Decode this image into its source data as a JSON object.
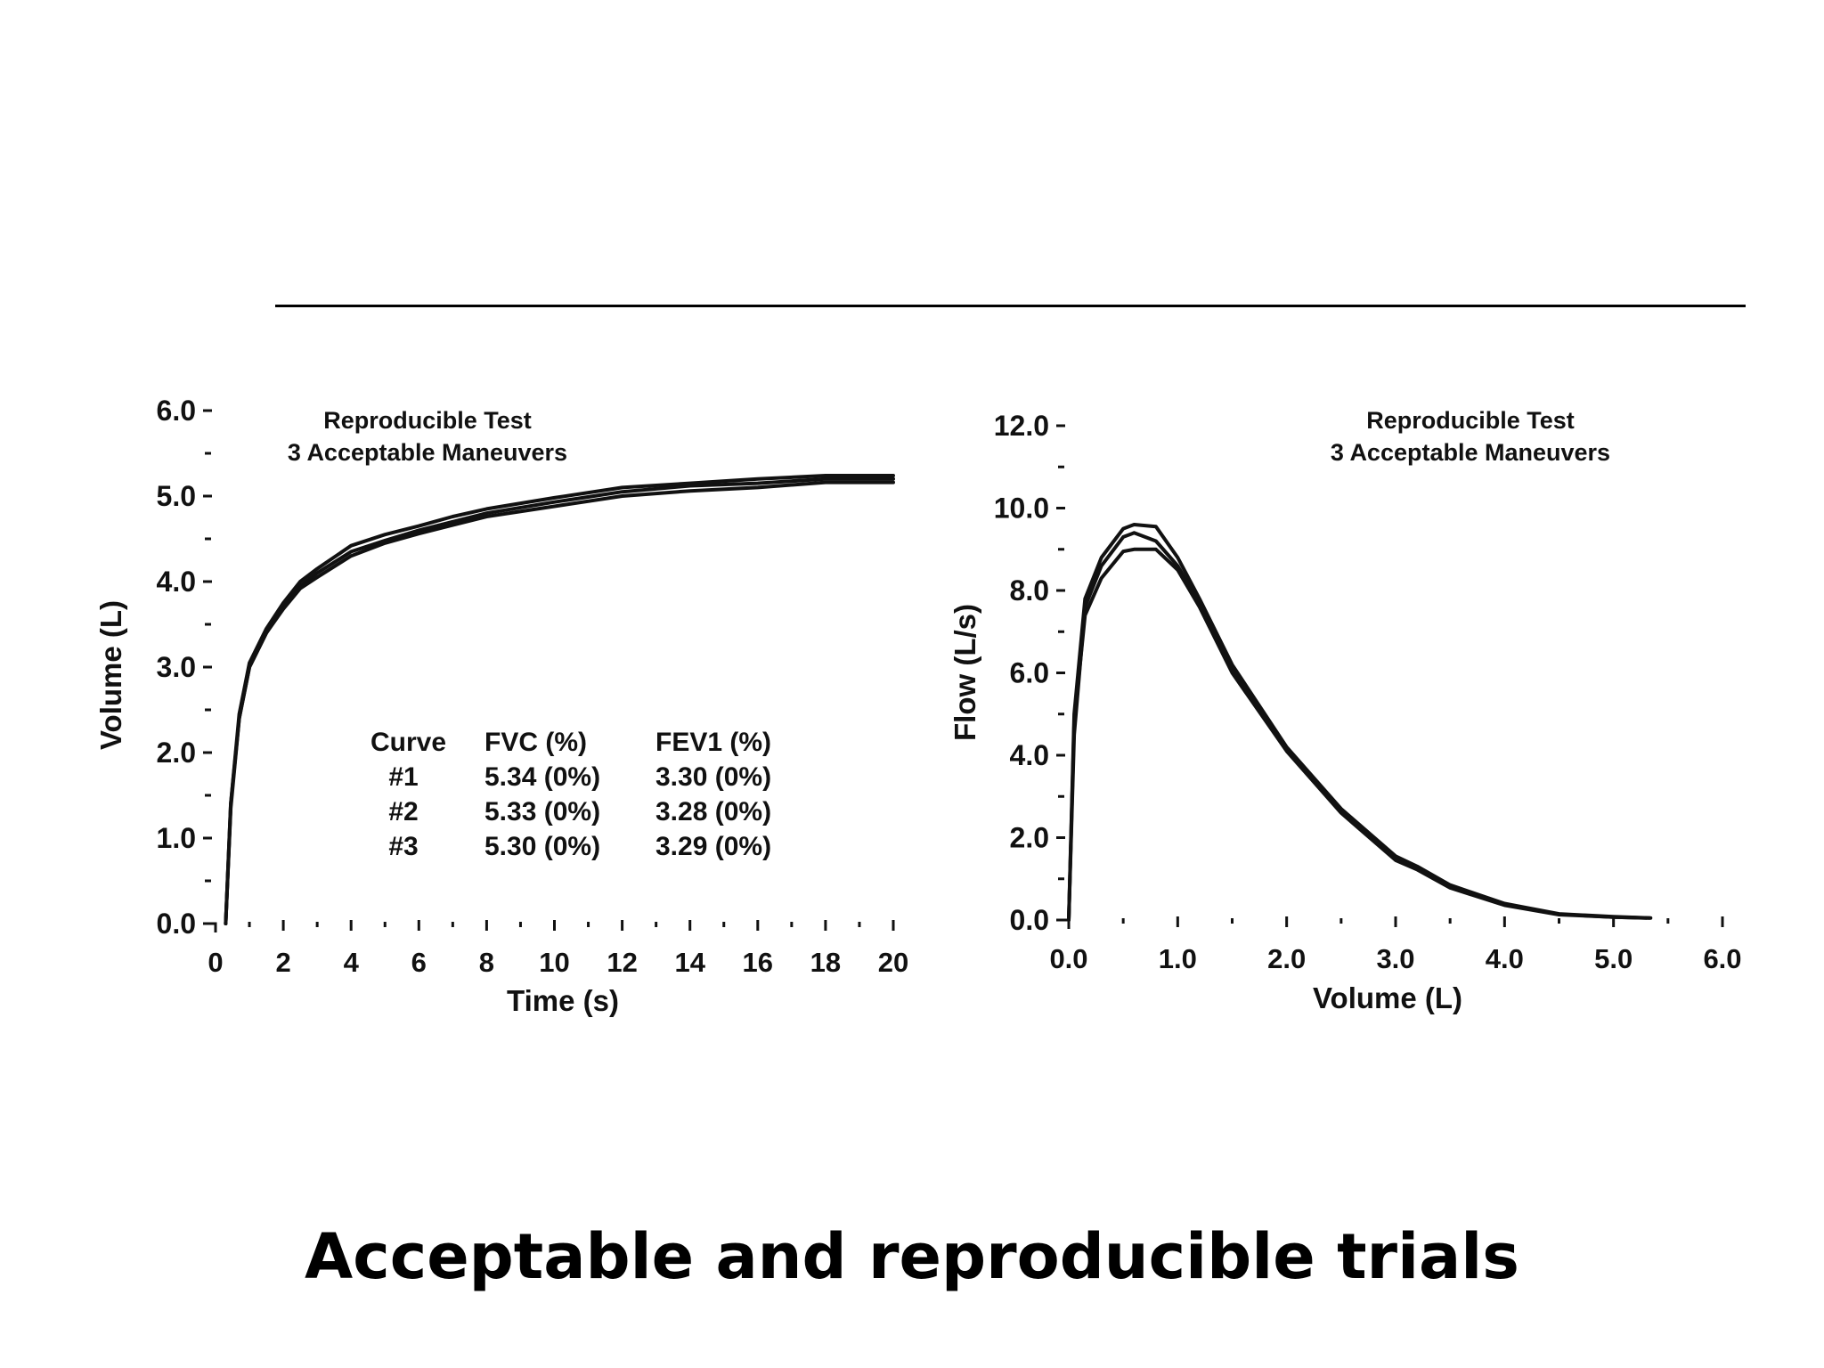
{
  "slide": {
    "title": "Acceptable and reproducible trials"
  },
  "colors": {
    "ink": "#111111",
    "background": "#ffffff"
  },
  "chart_data": [
    {
      "type": "line",
      "title": "Reproducible Test",
      "subtitle": "3 Acceptable Maneuvers",
      "xlabel": "Time (s)",
      "ylabel": "Volume (L)",
      "xlim": [
        0,
        20
      ],
      "ylim": [
        0,
        6
      ],
      "x_ticks": [
        "0",
        "2",
        "4",
        "6",
        "8",
        "10",
        "12",
        "14",
        "16",
        "18",
        "20"
      ],
      "y_ticks": [
        "0.0",
        "1.0",
        "2.0",
        "3.0",
        "4.0",
        "5.0",
        "6.0"
      ],
      "grid": false,
      "series": [
        {
          "points": [
            [
              0.3,
              0
            ],
            [
              0.45,
              1.4
            ],
            [
              0.7,
              2.4
            ],
            [
              1,
              3.0
            ],
            [
              1.5,
              3.4
            ],
            [
              2,
              3.7
            ],
            [
              2.5,
              3.95
            ],
            [
              3,
              4.1
            ],
            [
              4,
              4.35
            ],
            [
              5,
              4.48
            ],
            [
              6,
              4.6
            ],
            [
              7,
              4.7
            ],
            [
              8,
              4.8
            ],
            [
              10,
              4.93
            ],
            [
              12,
              5.05
            ],
            [
              14,
              5.12
            ],
            [
              16,
              5.15
            ],
            [
              18,
              5.2
            ],
            [
              20,
              5.2
            ]
          ]
        },
        {
          "points": [
            [
              0.3,
              0
            ],
            [
              0.45,
              1.4
            ],
            [
              0.7,
              2.45
            ],
            [
              1,
              3.05
            ],
            [
              1.5,
              3.45
            ],
            [
              2,
              3.75
            ],
            [
              2.5,
              4.0
            ],
            [
              3,
              4.15
            ],
            [
              4,
              4.42
            ],
            [
              5,
              4.55
            ],
            [
              6,
              4.65
            ],
            [
              7,
              4.76
            ],
            [
              8,
              4.85
            ],
            [
              10,
              4.98
            ],
            [
              12,
              5.1
            ],
            [
              14,
              5.15
            ],
            [
              16,
              5.2
            ],
            [
              18,
              5.24
            ],
            [
              20,
              5.24
            ]
          ]
        },
        {
          "points": [
            [
              0.3,
              0
            ],
            [
              0.45,
              1.35
            ],
            [
              0.7,
              2.4
            ],
            [
              1,
              3.0
            ],
            [
              1.5,
              3.4
            ],
            [
              2,
              3.68
            ],
            [
              2.5,
              3.92
            ],
            [
              3,
              4.05
            ],
            [
              4,
              4.3
            ],
            [
              5,
              4.45
            ],
            [
              6,
              4.56
            ],
            [
              7,
              4.66
            ],
            [
              8,
              4.76
            ],
            [
              10,
              4.88
            ],
            [
              12,
              5.0
            ],
            [
              14,
              5.06
            ],
            [
              16,
              5.1
            ],
            [
              18,
              5.16
            ],
            [
              20,
              5.16
            ]
          ]
        }
      ],
      "table": {
        "headers": [
          "Curve",
          "FVC (%)",
          "FEV1 (%)"
        ],
        "rows": [
          [
            "#1",
            "5.34 (0%)",
            "3.30 (0%)"
          ],
          [
            "#2",
            "5.33 (0%)",
            "3.28 (0%)"
          ],
          [
            "#3",
            "5.30 (0%)",
            "3.29 (0%)"
          ]
        ]
      }
    },
    {
      "type": "line",
      "title": "Reproducible Test",
      "subtitle": "3 Acceptable Maneuvers",
      "xlabel": "Volume (L)",
      "ylabel": "Flow (L/s)",
      "xlim": [
        0,
        6
      ],
      "ylim": [
        0,
        12
      ],
      "x_ticks": [
        "0.0",
        "1.0",
        "2.0",
        "3.0",
        "4.0",
        "5.0",
        "6.0"
      ],
      "y_ticks": [
        "0.0",
        "2.0",
        "4.0",
        "6.0",
        "8.0",
        "10.0",
        "12.0"
      ],
      "grid": false,
      "series": [
        {
          "points": [
            [
              0,
              0
            ],
            [
              0.05,
              5.0
            ],
            [
              0.15,
              7.8
            ],
            [
              0.3,
              8.8
            ],
            [
              0.5,
              9.5
            ],
            [
              0.6,
              9.6
            ],
            [
              0.8,
              9.55
            ],
            [
              1.0,
              8.8
            ],
            [
              1.2,
              7.8
            ],
            [
              1.5,
              6.2
            ],
            [
              2.0,
              4.2
            ],
            [
              2.5,
              2.7
            ],
            [
              3.0,
              1.55
            ],
            [
              3.2,
              1.3
            ],
            [
              3.5,
              0.85
            ],
            [
              4.0,
              0.4
            ],
            [
              4.5,
              0.15
            ],
            [
              5.0,
              0.08
            ],
            [
              5.34,
              0.05
            ]
          ]
        },
        {
          "points": [
            [
              0,
              0
            ],
            [
              0.05,
              4.5
            ],
            [
              0.15,
              7.6
            ],
            [
              0.3,
              8.6
            ],
            [
              0.5,
              9.3
            ],
            [
              0.6,
              9.4
            ],
            [
              0.8,
              9.2
            ],
            [
              1.0,
              8.6
            ],
            [
              1.2,
              7.7
            ],
            [
              1.5,
              6.1
            ],
            [
              2.0,
              4.15
            ],
            [
              2.5,
              2.65
            ],
            [
              3.0,
              1.5
            ],
            [
              3.2,
              1.25
            ],
            [
              3.5,
              0.8
            ],
            [
              4.0,
              0.38
            ],
            [
              4.5,
              0.14
            ],
            [
              5.0,
              0.07
            ],
            [
              5.33,
              0.05
            ]
          ]
        },
        {
          "points": [
            [
              0,
              0
            ],
            [
              0.05,
              4.8
            ],
            [
              0.15,
              7.4
            ],
            [
              0.3,
              8.3
            ],
            [
              0.5,
              8.95
            ],
            [
              0.6,
              9.0
            ],
            [
              0.8,
              9.0
            ],
            [
              1.0,
              8.5
            ],
            [
              1.2,
              7.6
            ],
            [
              1.5,
              6.0
            ],
            [
              2.0,
              4.1
            ],
            [
              2.5,
              2.6
            ],
            [
              3.0,
              1.45
            ],
            [
              3.2,
              1.22
            ],
            [
              3.5,
              0.78
            ],
            [
              4.0,
              0.36
            ],
            [
              4.5,
              0.13
            ],
            [
              5.0,
              0.07
            ],
            [
              5.3,
              0.05
            ]
          ]
        }
      ]
    }
  ]
}
